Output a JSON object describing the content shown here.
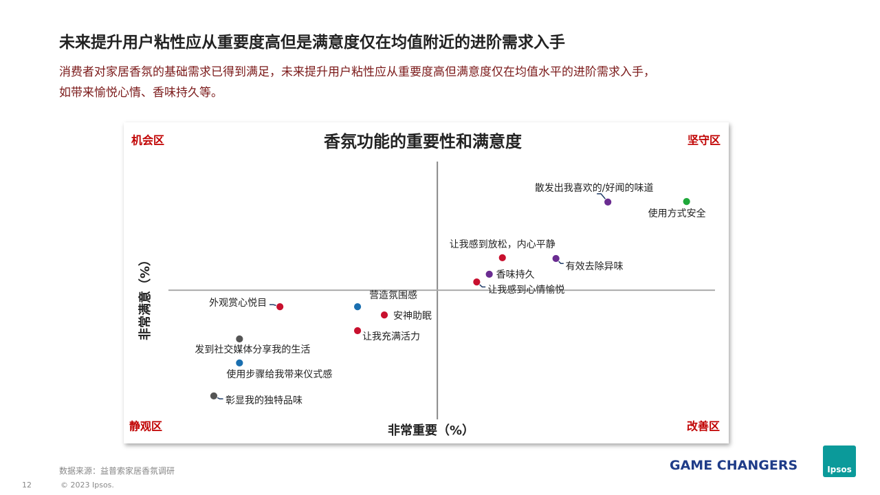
{
  "slide": {
    "title": "未来提升用户粘性应从重要度高但是满意度仅在均值附近的进阶需求入手",
    "subtitle_lines": [
      "消费者对家居香氛的基础需求已得到满足，未来提升用户粘性应从重要度高但满意度仅在均值水平的进阶需求入手，",
      "如带来愉悦心情、香味持久等。"
    ],
    "source": "数据来源：益普索家居香氛调研",
    "copyright": "© 2023 Ipsos.",
    "page_number": "12",
    "tagline": "GAME CHANGERS",
    "logo": "Ipsos"
  },
  "chart_data": {
    "type": "scatter",
    "title": "香氛功能的重要性和满意度",
    "xlabel": "非常重要（%）",
    "ylabel": "非常满意（%）",
    "quadrants": {
      "top_left": "机会区",
      "top_right": "坚守区",
      "bottom_left": "静观区",
      "bottom_right": "改善区"
    },
    "labels": [
      "散发出我喜欢的/好闻的味道",
      "使用方式安全",
      "让我感到放松，内心平静",
      "有效去除异味",
      "香味持久",
      "让我感到心情愉悦",
      "营造氛围感",
      "外观赏心悦目",
      "安神助眠",
      "让我充满活力",
      "发到社交媒体分享我的生活",
      "使用步骤给我带来仪式感",
      "彰显我的独特品味"
    ],
    "x": [
      80.4,
      94.8,
      61.1,
      70.9,
      58.7,
      56.4,
      34.6,
      20.4,
      39.5,
      34.6,
      13.0,
      13.0,
      8.3
    ],
    "values": [
      84.3,
      84.5,
      62.7,
      62.4,
      56.3,
      53.3,
      43.7,
      43.7,
      40.5,
      34.4,
      31.2,
      21.9,
      9.1
    ],
    "colors": [
      "#6a2c91",
      "#1fa83a",
      "#c8102e",
      "#6a2c91",
      "#6a2c91",
      "#c8102e",
      "#1a6fb0",
      "#c8102e",
      "#c8102e",
      "#c8102e",
      "#555555",
      "#1a6fb0",
      "#555555"
    ],
    "xlim": [
      0,
      100
    ],
    "ylim": [
      0,
      100
    ],
    "reference_x": 49.2,
    "reference_y": 50.1
  }
}
